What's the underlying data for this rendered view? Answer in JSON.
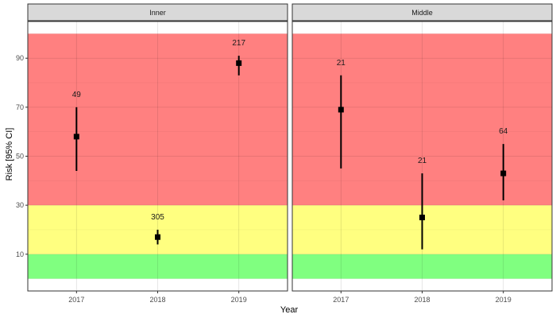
{
  "chart_data": {
    "type": "scatter",
    "xlabel": "Year",
    "ylabel": "Risk [95% CI]",
    "x_categories": [
      "2017",
      "2018",
      "2019"
    ],
    "y_ticks": [
      10,
      30,
      50,
      70,
      90
    ],
    "ylim": [
      -5,
      105
    ],
    "bands": [
      {
        "from": 0,
        "to": 10,
        "color": "#80ff80"
      },
      {
        "from": 10,
        "to": 30,
        "color": "#ffff80"
      },
      {
        "from": 30,
        "to": 100,
        "color": "#ff8080"
      }
    ],
    "facets": [
      {
        "name": "Inner",
        "points": [
          {
            "x": "2017",
            "y": 58,
            "lower": 44,
            "upper": 70,
            "label": "49"
          },
          {
            "x": "2018",
            "y": 17,
            "lower": 14,
            "upper": 20,
            "label": "305"
          },
          {
            "x": "2019",
            "y": 88,
            "lower": 83,
            "upper": 91,
            "label": "217"
          }
        ]
      },
      {
        "name": "Middle",
        "points": [
          {
            "x": "2017",
            "y": 69,
            "lower": 45,
            "upper": 83,
            "label": "21"
          },
          {
            "x": "2018",
            "y": 25,
            "lower": 12,
            "upper": 43,
            "label": "21"
          },
          {
            "x": "2019",
            "y": 43,
            "lower": 32,
            "upper": 55,
            "label": "64"
          }
        ]
      }
    ],
    "grid": true,
    "legend": "none"
  }
}
